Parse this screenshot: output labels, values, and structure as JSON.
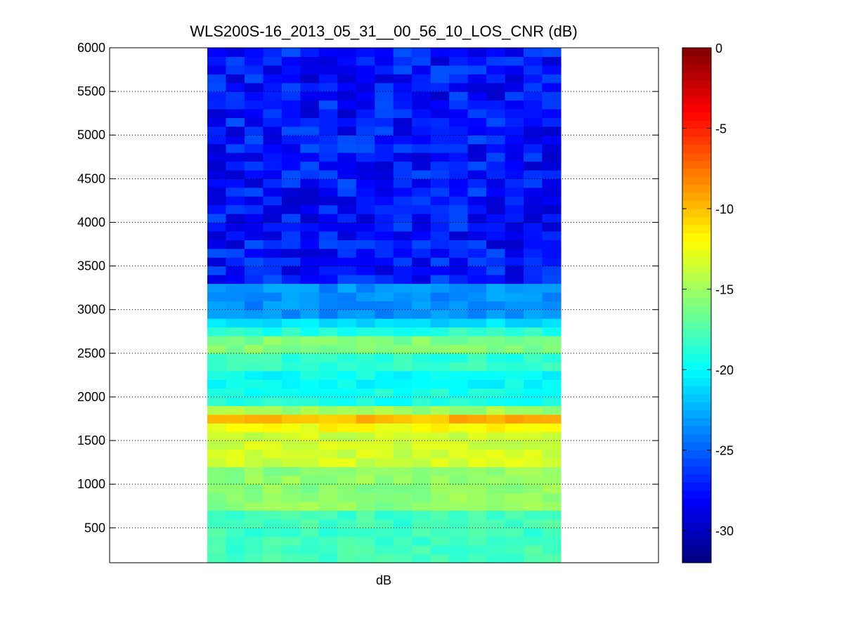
{
  "chart_data": {
    "type": "heatmap",
    "title": "WLS200S-16_2013_05_31__00_56_10_LOS_CNR (dB)",
    "xlabel": "dB",
    "ylabel": "",
    "y_range": [
      100,
      6000
    ],
    "y_ticks": [
      "500",
      "1000",
      "1500",
      "2000",
      "2500",
      "3000",
      "3500",
      "4000",
      "4500",
      "5000",
      "5500",
      "6000"
    ],
    "grid": "horizontal dotted",
    "columns": 19,
    "row_height": 100,
    "cell_noise_db": 0.9,
    "colorbar": {
      "colormap": "jet",
      "range": [
        -32,
        0
      ],
      "ticks": [
        "0",
        "-5",
        "-10",
        "-15",
        "-20",
        "-25",
        "-30"
      ]
    },
    "profile": [
      {
        "range_from": 100,
        "range_to": 700,
        "cnr_db": -18.0
      },
      {
        "range_from": 700,
        "range_to": 1200,
        "cnr_db": -15.5
      },
      {
        "range_from": 1200,
        "range_to": 1600,
        "cnr_db": -13.5
      },
      {
        "range_from": 1600,
        "range_to": 1700,
        "cnr_db": -12.2
      },
      {
        "range_from": 1700,
        "range_to": 1800,
        "cnr_db": -9.8
      },
      {
        "range_from": 1800,
        "range_to": 1900,
        "cnr_db": -15.0
      },
      {
        "range_from": 1900,
        "range_to": 2100,
        "cnr_db": -19.2
      },
      {
        "range_from": 2100,
        "range_to": 2300,
        "cnr_db": -19.8
      },
      {
        "range_from": 2300,
        "range_to": 2500,
        "cnr_db": -18.5
      },
      {
        "range_from": 2500,
        "range_to": 2700,
        "cnr_db": -16.0
      },
      {
        "range_from": 2700,
        "range_to": 2800,
        "cnr_db": -18.8
      },
      {
        "range_from": 2800,
        "range_to": 2900,
        "cnr_db": -21.0
      },
      {
        "range_from": 2900,
        "range_to": 3300,
        "cnr_db": -23.5
      },
      {
        "range_from": 3300,
        "range_to": 6000,
        "cnr_db": -27.5
      }
    ]
  }
}
